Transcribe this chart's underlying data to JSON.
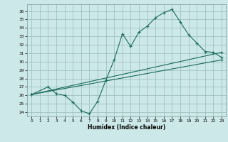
{
  "xlabel": "Humidex (Indice chaleur)",
  "bg_color": "#cce8e8",
  "line_color": "#1a6b5a",
  "grid_color": "#99bbbb",
  "xlim": [
    -0.5,
    23.5
  ],
  "ylim": [
    23.5,
    36.8
  ],
  "xticks": [
    0,
    1,
    2,
    3,
    4,
    5,
    6,
    7,
    8,
    9,
    10,
    11,
    12,
    13,
    14,
    15,
    16,
    17,
    18,
    19,
    20,
    21,
    22,
    23
  ],
  "yticks": [
    24,
    25,
    26,
    27,
    28,
    29,
    30,
    31,
    32,
    33,
    34,
    35,
    36
  ],
  "line_zigzag": {
    "x": [
      0,
      2,
      3,
      4,
      5,
      6,
      7,
      8,
      9,
      10,
      11,
      12,
      13,
      14,
      15,
      16,
      17,
      18,
      19,
      20,
      21,
      22,
      23
    ],
    "y": [
      26.1,
      27.0,
      26.2,
      26.0,
      25.2,
      24.2,
      23.8,
      25.3,
      27.8,
      30.2,
      33.3,
      31.8,
      33.5,
      34.2,
      35.2,
      35.8,
      36.2,
      34.7,
      33.2,
      32.2,
      31.2,
      31.1,
      30.5
    ]
  },
  "line_low": {
    "x": [
      0,
      23
    ],
    "y": [
      26.1,
      30.2
    ]
  },
  "line_mid": {
    "x": [
      0,
      23
    ],
    "y": [
      26.1,
      31.1
    ]
  }
}
